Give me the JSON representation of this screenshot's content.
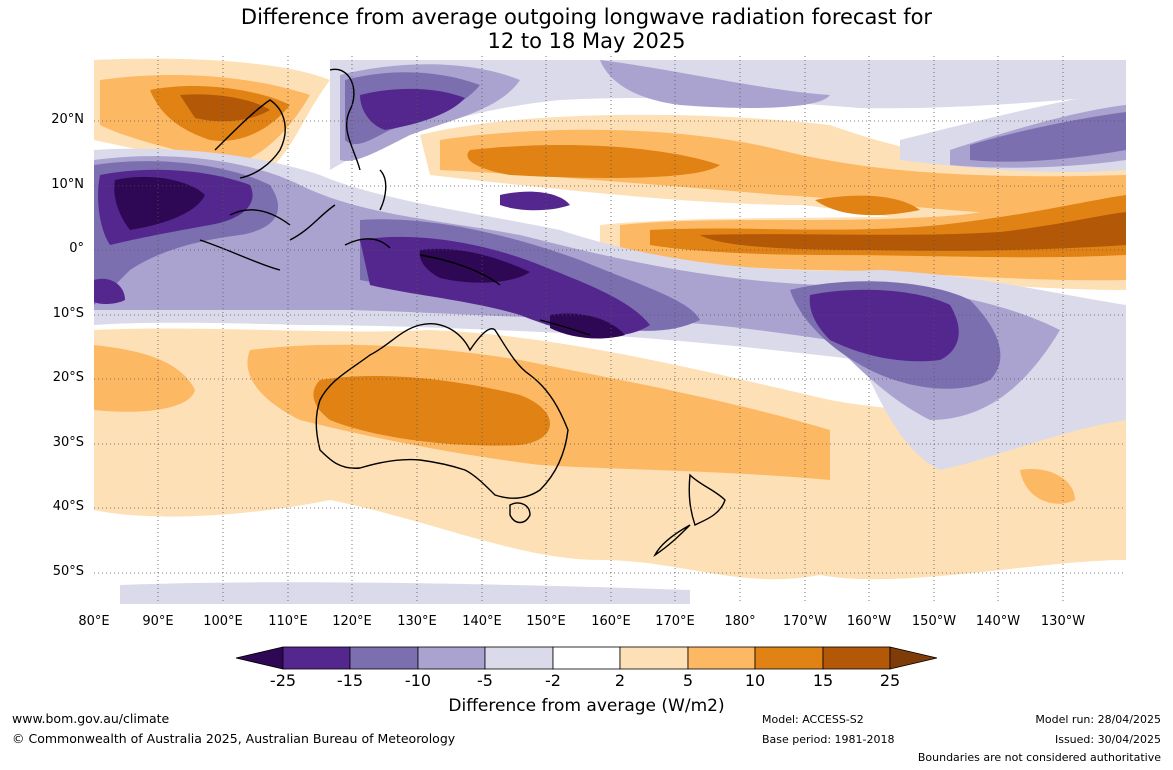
{
  "title": {
    "line1": "Difference from average outgoing longwave radiation forecast for",
    "line2": "12 to 18 May 2025"
  },
  "lat_labels": [
    "20°N",
    "10°N",
    "0°",
    "10°S",
    "20°S",
    "30°S",
    "40°S",
    "50°S"
  ],
  "lon_labels": [
    "80°E",
    "90°E",
    "100°E",
    "110°E",
    "120°E",
    "130°E",
    "140°E",
    "150°E",
    "160°E",
    "170°E",
    "180°",
    "170°W",
    "160°W",
    "150°W",
    "140°W",
    "130°W"
  ],
  "legend": {
    "ticks": [
      "-25",
      "-15",
      "-10",
      "-5",
      "-2",
      "2",
      "5",
      "10",
      "15",
      "25"
    ],
    "colors": [
      "#2e0854",
      "#54278f",
      "#7c6fb0",
      "#aaa3cf",
      "#dadaeb",
      "#ffffff",
      "#fee0b6",
      "#fdb863",
      "#e08214",
      "#b35806",
      "#7f3b08"
    ],
    "label": "Difference from average (W/m2)"
  },
  "footer": {
    "url": "www.bom.gov.au/climate",
    "copyright": "© Commonwealth of Australia 2025, Australian Bureau of Meteorology",
    "model": "Model: ACCESS-S2",
    "base_period": "Base period: 1981-2018",
    "model_run": "Model run: 28/04/2025",
    "issued": "Issued: 30/04/2025",
    "disclaimer": "Boundaries are not considered authoritative"
  }
}
